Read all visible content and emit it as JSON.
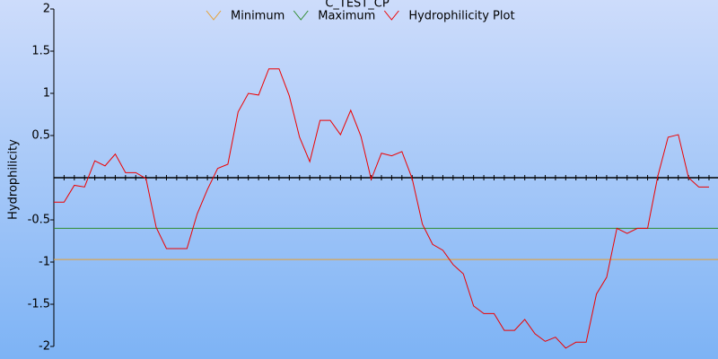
{
  "chart_data": {
    "type": "line",
    "title": "C_TEST_CP",
    "y_label": "Hydrophilicity",
    "ylim": [
      -2,
      2
    ],
    "yticks": [
      2,
      1.5,
      1,
      0.5,
      -0.5,
      -1,
      -1.5,
      -2
    ],
    "thresholds": [
      {
        "name": "Minimum",
        "color": "#e8a030",
        "value": -0.97
      },
      {
        "name": "Maximum",
        "color": "#2e8b2e",
        "value": -0.6
      }
    ],
    "series": [
      {
        "name": "Hydrophilicity Plot",
        "color": "#ee0000",
        "values": [
          -0.29,
          -0.29,
          -0.09,
          -0.11,
          0.2,
          0.14,
          0.28,
          0.06,
          0.06,
          -0.01,
          -0.59,
          -0.84,
          -0.84,
          -0.84,
          -0.43,
          -0.14,
          0.11,
          0.16,
          0.78,
          1.0,
          0.98,
          1.29,
          1.29,
          0.97,
          0.48,
          0.19,
          0.68,
          0.68,
          0.51,
          0.8,
          0.49,
          -0.02,
          0.29,
          0.26,
          0.31,
          -0.01,
          -0.55,
          -0.79,
          -0.86,
          -1.03,
          -1.14,
          -1.52,
          -1.61,
          -1.61,
          -1.81,
          -1.81,
          -1.68,
          -1.85,
          -1.94,
          -1.89,
          -2.02,
          -1.95,
          -1.95,
          -1.38,
          -1.18,
          -0.6,
          -0.66,
          -0.6,
          -0.6,
          0.02,
          0.48,
          0.51,
          0,
          -0.11,
          -0.11
        ]
      }
    ]
  }
}
